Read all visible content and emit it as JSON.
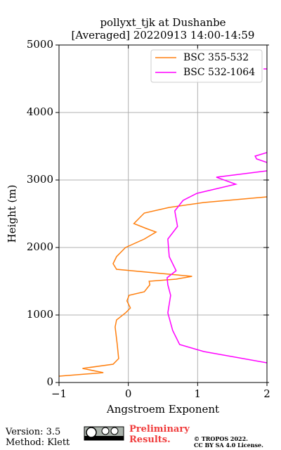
{
  "chart_data": {
    "type": "line",
    "title": "pollyxt_tjk at Dushanbe",
    "subtitle": "[Averaged] 20220913 14:00-14:59",
    "x_label": "Angstroem Exponent",
    "y_label": "Height (m)",
    "xlim": [
      -1,
      2
    ],
    "ylim": [
      0,
      5000
    ],
    "xticks": [
      {
        "value": -1,
        "label": "−1"
      },
      0,
      1,
      2
    ],
    "yticks": [
      0,
      1000,
      2000,
      3000,
      4000,
      5000
    ],
    "grid": true,
    "legend": "upper right",
    "series": [
      {
        "name": "BSC 355-532",
        "color": "#ff7f0e",
        "x": [
          -1,
          -0.36,
          -0.66,
          -0.22,
          -0.14,
          -0.16,
          -0.19,
          -0.17,
          -0.04,
          0.03,
          -0.02,
          0.01,
          0.23,
          0.31,
          0.3,
          0.69,
          0.92,
          0.59,
          -0.17,
          -0.22,
          -0.17,
          -0.04,
          0.23,
          0.4,
          0.26,
          0.08,
          0.23,
          0.59,
          1.09,
          2
        ],
        "values": [
          94,
          146,
          208,
          271,
          354,
          563,
          823,
          927,
          1031,
          1104,
          1208,
          1292,
          1344,
          1448,
          1500,
          1531,
          1573,
          1604,
          1677,
          1760,
          1865,
          2000,
          2125,
          2229,
          2281,
          2354,
          2510,
          2594,
          2667,
          2750
        ]
      },
      {
        "name": "BSC 532-1064",
        "color": "#ff00ff",
        "x": [
          2,
          1.09,
          0.74,
          0.64,
          0.57,
          0.61,
          0.57,
          0.56,
          0.69,
          0.59,
          0.57,
          0.71,
          0.67,
          0.79,
          0.99,
          1.55,
          1.27,
          2,
          null,
          2,
          1.83,
          1.85,
          2,
          null,
          1.95,
          2
        ],
        "values": [
          292,
          458,
          563,
          771,
          1031,
          1292,
          1448,
          1552,
          1656,
          1865,
          2125,
          2312,
          2542,
          2698,
          2802,
          2937,
          3042,
          3135,
          null,
          3406,
          3354,
          3312,
          3260,
          null,
          4646,
          4646
        ]
      }
    ]
  },
  "footer": {
    "version": "Version: 3.5",
    "method": "Method: Klett",
    "notice": "Preliminary Results.",
    "copyright": "© TROPOS 2022.",
    "license": "CC BY SA 4.0 License."
  }
}
